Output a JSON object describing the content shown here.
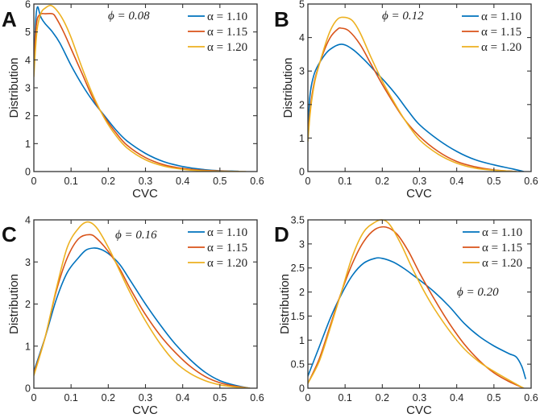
{
  "chart_data": [
    {
      "type": "line",
      "panel": "A",
      "annotation": "ϕ = 0.08",
      "annotation_position": "top-center",
      "xlabel": "CVC",
      "ylabel": "Distribution",
      "xlim": [
        0,
        0.6
      ],
      "ylim": [
        0,
        6
      ],
      "xticks": [
        0,
        0.1,
        0.2,
        0.3,
        0.4,
        0.5,
        0.6
      ],
      "xtick_labels": [
        "0",
        "0.1",
        "0.2",
        "0.3",
        "0.4",
        "0.5",
        "0.6"
      ],
      "yticks": [
        0,
        1,
        2,
        3,
        4,
        5,
        6
      ],
      "ytick_labels": [
        "0",
        "1",
        "2",
        "3",
        "4",
        "5",
        "6"
      ],
      "legend": "top-right",
      "series": [
        {
          "name": "α = 1.10",
          "color": "#0072BD",
          "x": [
            0,
            0.003,
            0.006,
            0.01,
            0.015,
            0.02,
            0.03,
            0.05,
            0.07,
            0.1,
            0.13,
            0.16,
            0.19,
            0.22,
            0.25,
            0.3,
            0.35,
            0.4,
            0.45,
            0.5,
            0.55
          ],
          "y": [
            3.6,
            4.8,
            5.6,
            5.9,
            5.7,
            5.5,
            5.3,
            5.0,
            4.6,
            3.8,
            3.1,
            2.5,
            2.0,
            1.5,
            1.1,
            0.65,
            0.35,
            0.18,
            0.08,
            0.03,
            0.01
          ]
        },
        {
          "name": "α = 1.15",
          "color": "#D95319",
          "x": [
            0,
            0.005,
            0.01,
            0.02,
            0.03,
            0.05,
            0.06,
            0.08,
            0.1,
            0.13,
            0.16,
            0.19,
            0.22,
            0.25,
            0.3,
            0.35,
            0.4,
            0.45,
            0.5,
            0.55
          ],
          "y": [
            3.6,
            5.0,
            5.5,
            5.65,
            5.65,
            5.65,
            5.5,
            5.0,
            4.4,
            3.5,
            2.6,
            1.95,
            1.4,
            0.95,
            0.5,
            0.24,
            0.11,
            0.05,
            0.02,
            0.0
          ]
        },
        {
          "name": "α = 1.20",
          "color": "#EDB120",
          "x": [
            0,
            0.005,
            0.01,
            0.02,
            0.03,
            0.045,
            0.06,
            0.08,
            0.1,
            0.13,
            0.16,
            0.19,
            0.22,
            0.25,
            0.3,
            0.35,
            0.4,
            0.45,
            0.5,
            0.57
          ],
          "y": [
            3.4,
            4.5,
            5.2,
            5.7,
            5.85,
            5.95,
            5.8,
            5.4,
            4.8,
            3.7,
            2.7,
            1.9,
            1.3,
            0.85,
            0.42,
            0.19,
            0.08,
            0.03,
            0.01,
            0.0
          ]
        }
      ]
    },
    {
      "type": "line",
      "panel": "B",
      "annotation": "ϕ = 0.12",
      "annotation_position": "top-center",
      "xlabel": "CVC",
      "ylabel": "Distribution",
      "xlim": [
        0,
        0.6
      ],
      "ylim": [
        0,
        5
      ],
      "xticks": [
        0,
        0.1,
        0.2,
        0.3,
        0.4,
        0.5,
        0.6
      ],
      "xtick_labels": [
        "0",
        "0.1",
        "0.2",
        "0.3",
        "0.4",
        "0.5",
        "0.6"
      ],
      "yticks": [
        0,
        1,
        2,
        3,
        4,
        5
      ],
      "ytick_labels": [
        "0",
        "1",
        "2",
        "3",
        "4",
        "5"
      ],
      "legend": "top-right",
      "series": [
        {
          "name": "α = 1.10",
          "color": "#0072BD",
          "x": [
            0,
            0.005,
            0.01,
            0.02,
            0.04,
            0.06,
            0.09,
            0.12,
            0.15,
            0.18,
            0.21,
            0.24,
            0.27,
            0.3,
            0.35,
            0.4,
            0.45,
            0.5,
            0.55,
            0.58
          ],
          "y": [
            1.3,
            2.2,
            2.6,
            3.0,
            3.4,
            3.65,
            3.8,
            3.65,
            3.35,
            3.0,
            2.65,
            2.25,
            1.8,
            1.4,
            0.95,
            0.6,
            0.35,
            0.2,
            0.08,
            0.0
          ]
        },
        {
          "name": "α = 1.15",
          "color": "#D95319",
          "x": [
            0,
            0.005,
            0.01,
            0.02,
            0.04,
            0.06,
            0.08,
            0.09,
            0.11,
            0.14,
            0.17,
            0.2,
            0.23,
            0.26,
            0.3,
            0.35,
            0.4,
            0.45,
            0.5,
            0.56
          ],
          "y": [
            1.0,
            1.7,
            2.2,
            2.8,
            3.5,
            4.0,
            4.25,
            4.28,
            4.2,
            3.8,
            3.2,
            2.6,
            2.05,
            1.55,
            1.05,
            0.6,
            0.3,
            0.14,
            0.05,
            0.0
          ]
        },
        {
          "name": "α = 1.20",
          "color": "#EDB120",
          "x": [
            0,
            0.005,
            0.01,
            0.02,
            0.04,
            0.06,
            0.08,
            0.1,
            0.12,
            0.14,
            0.17,
            0.2,
            0.23,
            0.26,
            0.3,
            0.35,
            0.4,
            0.45,
            0.5,
            0.56
          ],
          "y": [
            0.9,
            1.6,
            2.1,
            2.75,
            3.55,
            4.2,
            4.55,
            4.6,
            4.5,
            4.15,
            3.4,
            2.7,
            2.1,
            1.55,
            0.95,
            0.52,
            0.25,
            0.1,
            0.04,
            0.0
          ]
        }
      ]
    },
    {
      "type": "line",
      "panel": "C",
      "annotation": "ϕ = 0.16",
      "annotation_position": "top-center",
      "xlabel": "CVC",
      "ylabel": "Distribution",
      "xlim": [
        0,
        0.6
      ],
      "ylim": [
        0,
        4
      ],
      "xticks": [
        0,
        0.1,
        0.2,
        0.3,
        0.4,
        0.5,
        0.6
      ],
      "xtick_labels": [
        "0",
        "0.1",
        "0.2",
        "0.3",
        "0.4",
        "0.5",
        "0.6"
      ],
      "yticks": [
        0,
        1,
        2,
        3,
        4
      ],
      "ytick_labels": [
        "0",
        "1",
        "2",
        "3",
        "4"
      ],
      "legend": "top-right",
      "series": [
        {
          "name": "α = 1.10",
          "color": "#0072BD",
          "x": [
            0,
            0.03,
            0.06,
            0.09,
            0.12,
            0.14,
            0.16,
            0.18,
            0.2,
            0.23,
            0.26,
            0.3,
            0.34,
            0.38,
            0.42,
            0.46,
            0.5,
            0.54,
            0.58
          ],
          "y": [
            0.4,
            1.2,
            2.1,
            2.75,
            3.1,
            3.28,
            3.33,
            3.3,
            3.2,
            2.95,
            2.55,
            2.0,
            1.5,
            1.05,
            0.68,
            0.38,
            0.18,
            0.07,
            0.0
          ]
        },
        {
          "name": "α = 1.15",
          "color": "#D95319",
          "x": [
            0,
            0.03,
            0.06,
            0.09,
            0.12,
            0.15,
            0.17,
            0.2,
            0.23,
            0.26,
            0.3,
            0.34,
            0.38,
            0.42,
            0.46,
            0.5,
            0.54,
            0.58
          ],
          "y": [
            0.35,
            1.2,
            2.3,
            3.1,
            3.55,
            3.65,
            3.55,
            3.25,
            2.85,
            2.35,
            1.75,
            1.25,
            0.85,
            0.52,
            0.28,
            0.13,
            0.05,
            0.0
          ]
        },
        {
          "name": "α = 1.20",
          "color": "#EDB120",
          "x": [
            0,
            0.03,
            0.06,
            0.09,
            0.12,
            0.145,
            0.17,
            0.2,
            0.23,
            0.26,
            0.3,
            0.34,
            0.38,
            0.42,
            0.46,
            0.5,
            0.54,
            0.58
          ],
          "y": [
            0.3,
            1.2,
            2.35,
            3.35,
            3.8,
            3.95,
            3.8,
            3.35,
            2.8,
            2.25,
            1.6,
            1.05,
            0.62,
            0.35,
            0.18,
            0.08,
            0.03,
            0.0
          ]
        }
      ]
    },
    {
      "type": "line",
      "panel": "D",
      "annotation": "ϕ = 0.20",
      "annotation_position": "middle-right",
      "xlabel": "CVC",
      "ylabel": "Distribution",
      "xlim": [
        0,
        0.6
      ],
      "ylim": [
        0,
        3.5
      ],
      "xticks": [
        0,
        0.1,
        0.2,
        0.3,
        0.4,
        0.5,
        0.6
      ],
      "xtick_labels": [
        "0",
        "0.1",
        "0.2",
        "0.3",
        "0.4",
        "0.5",
        "0.6"
      ],
      "yticks": [
        0,
        0.5,
        1,
        1.5,
        2,
        2.5,
        3,
        3.5
      ],
      "ytick_labels": [
        "0",
        "0.5",
        "1",
        "1.5",
        "2",
        "2.5",
        "3",
        "3.5"
      ],
      "legend": "top-right",
      "series": [
        {
          "name": "α = 1.10",
          "color": "#0072BD",
          "x": [
            0,
            0.03,
            0.06,
            0.09,
            0.12,
            0.15,
            0.18,
            0.2,
            0.23,
            0.26,
            0.3,
            0.34,
            0.38,
            0.42,
            0.46,
            0.5,
            0.54,
            0.56,
            0.575,
            0.585
          ],
          "y": [
            0.25,
            0.85,
            1.45,
            1.95,
            2.35,
            2.6,
            2.7,
            2.7,
            2.62,
            2.48,
            2.25,
            2.0,
            1.7,
            1.35,
            1.08,
            0.88,
            0.72,
            0.65,
            0.45,
            0.2
          ]
        },
        {
          "name": "α = 1.15",
          "color": "#D95319",
          "x": [
            0,
            0.03,
            0.06,
            0.09,
            0.12,
            0.15,
            0.18,
            0.21,
            0.24,
            0.27,
            0.3,
            0.34,
            0.38,
            0.42,
            0.46,
            0.5,
            0.54,
            0.58
          ],
          "y": [
            0.1,
            0.6,
            1.3,
            2.0,
            2.6,
            3.05,
            3.3,
            3.35,
            3.2,
            2.85,
            2.4,
            1.85,
            1.35,
            0.92,
            0.58,
            0.32,
            0.14,
            0.0
          ]
        },
        {
          "name": "α = 1.20",
          "color": "#EDB120",
          "x": [
            0,
            0.03,
            0.06,
            0.09,
            0.12,
            0.15,
            0.18,
            0.2,
            0.22,
            0.25,
            0.28,
            0.31,
            0.34,
            0.38,
            0.42,
            0.46,
            0.5,
            0.54,
            0.58
          ],
          "y": [
            0.1,
            0.55,
            1.25,
            2.0,
            2.75,
            3.25,
            3.45,
            3.5,
            3.4,
            3.0,
            2.5,
            2.05,
            1.65,
            1.2,
            0.82,
            0.55,
            0.35,
            0.17,
            0.0
          ]
        }
      ]
    }
  ]
}
